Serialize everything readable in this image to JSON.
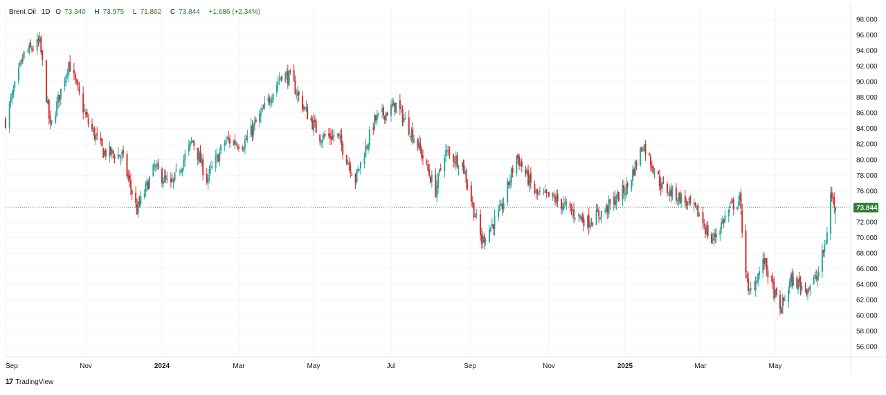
{
  "legend": {
    "symbol": "Brent Oil",
    "interval": "1D",
    "open_label": "O",
    "open": "73.340",
    "high_label": "H",
    "high": "73.975",
    "low_label": "L",
    "low": "71.802",
    "close_label": "C",
    "close": "73.844",
    "change": "+1.686 (+2.34%)"
  },
  "brand": {
    "name": "TradingView"
  },
  "colors": {
    "up": "#26a69a",
    "down": "#d32f2f",
    "grid": "#f0f3fa",
    "axis_text": "#131722",
    "price_tag": "#2e7d32"
  },
  "chart_data": {
    "type": "candlestick",
    "x_ticks": [
      "Sep",
      "Nov",
      "2024",
      "Mar",
      "May",
      "Jul",
      "Sep",
      "Nov",
      "2025",
      "Mar",
      "May"
    ],
    "y_ticks": [
      "56.000",
      "58.000",
      "60.000",
      "62.000",
      "64.000",
      "66.000",
      "68.000",
      "70.000",
      "72.000",
      "74.000",
      "76.000",
      "78.000",
      "80.000",
      "82.000",
      "84.000",
      "86.000",
      "88.000",
      "90.000",
      "92.000",
      "94.000",
      "96.000",
      "98.000"
    ],
    "ylim": [
      55,
      99
    ],
    "last_price": 73.844,
    "last_price_label": "73.844",
    "grid": true,
    "close_series": [
      [
        "2023-09-01",
        85
      ],
      [
        "2023-09-15",
        93.5
      ],
      [
        "2023-09-27",
        95
      ],
      [
        "2023-10-05",
        84
      ],
      [
        "2023-10-19",
        92.5
      ],
      [
        "2023-11-02",
        85
      ],
      [
        "2023-11-15",
        81
      ],
      [
        "2023-11-30",
        80.5
      ],
      [
        "2023-12-12",
        73.5
      ],
      [
        "2023-12-26",
        79
      ],
      [
        "2024-01-08",
        76.5
      ],
      [
        "2024-01-25",
        82.5
      ],
      [
        "2024-02-05",
        77.5
      ],
      [
        "2024-02-20",
        82.5
      ],
      [
        "2024-03-05",
        82
      ],
      [
        "2024-03-20",
        86
      ],
      [
        "2024-04-05",
        91
      ],
      [
        "2024-04-12",
        90.5
      ],
      [
        "2024-04-22",
        87
      ],
      [
        "2024-05-06",
        83
      ],
      [
        "2024-05-20",
        83
      ],
      [
        "2024-06-03",
        77.5
      ],
      [
        "2024-06-18",
        85
      ],
      [
        "2024-07-05",
        87
      ],
      [
        "2024-07-22",
        82
      ],
      [
        "2024-08-05",
        76
      ],
      [
        "2024-08-12",
        81
      ],
      [
        "2024-08-26",
        79.5
      ],
      [
        "2024-09-10",
        69.5
      ],
      [
        "2024-09-25",
        73.5
      ],
      [
        "2024-10-07",
        80.5
      ],
      [
        "2024-10-22",
        75.5
      ],
      [
        "2024-11-05",
        75
      ],
      [
        "2024-11-18",
        73.5
      ],
      [
        "2024-12-02",
        72
      ],
      [
        "2024-12-16",
        73.5
      ],
      [
        "2025-01-03",
        76.5
      ],
      [
        "2025-01-15",
        82
      ],
      [
        "2025-01-30",
        76.5
      ],
      [
        "2025-02-14",
        75
      ],
      [
        "2025-02-28",
        73
      ],
      [
        "2025-03-10",
        69.5
      ],
      [
        "2025-03-26",
        74
      ],
      [
        "2025-04-02",
        74.8
      ],
      [
        "2025-04-09",
        62.5
      ],
      [
        "2025-04-22",
        67
      ],
      [
        "2025-05-05",
        60.5
      ],
      [
        "2025-05-14",
        64.5
      ],
      [
        "2025-05-28",
        63.5
      ],
      [
        "2025-06-05",
        65
      ],
      [
        "2025-06-12",
        69.5
      ],
      [
        "2025-06-16",
        75.5
      ],
      [
        "2025-06-20",
        73.844
      ]
    ]
  }
}
